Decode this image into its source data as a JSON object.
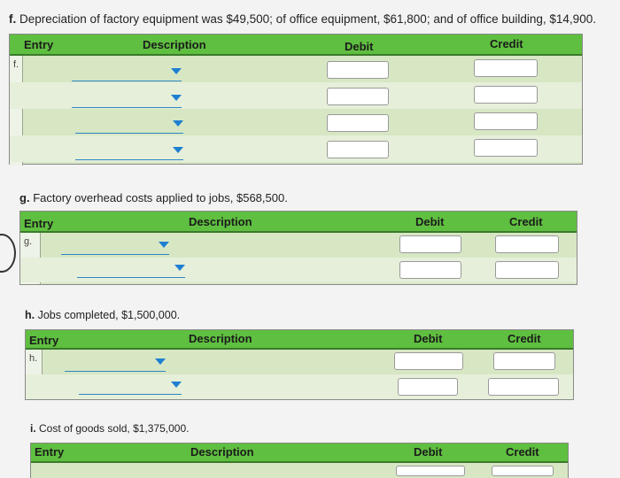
{
  "f": {
    "prompt_letter": "f.",
    "prompt_text": "Depreciation of factory equipment was $49,500; of office equipment, $61,800; and of office building, $14,900.",
    "headers": {
      "entry": "Entry",
      "description": "Description",
      "debit": "Debit",
      "credit": "Credit"
    },
    "entry_label": "f."
  },
  "g": {
    "prompt_letter": "g.",
    "prompt_text": "Factory overhead costs applied to jobs, $568,500.",
    "headers": {
      "entry": "Entry",
      "description": "Description",
      "debit": "Debit",
      "credit": "Credit"
    },
    "entry_label": "g."
  },
  "h": {
    "prompt_letter": "h.",
    "prompt_text": "Jobs completed, $1,500,000.",
    "headers": {
      "entry": "Entry",
      "description": "Description",
      "debit": "Debit",
      "credit": "Credit"
    },
    "entry_label": "h."
  },
  "i": {
    "prompt_letter": "i.",
    "prompt_text": "Cost of goods sold, $1,375,000.",
    "headers": {
      "entry": "Entry",
      "description": "Description",
      "debit": "Debit",
      "credit": "Credit"
    }
  },
  "colors": {
    "header_green": "#5fbf40",
    "row_green": "#d7e7c4",
    "accent_blue": "#1e7fd1"
  }
}
